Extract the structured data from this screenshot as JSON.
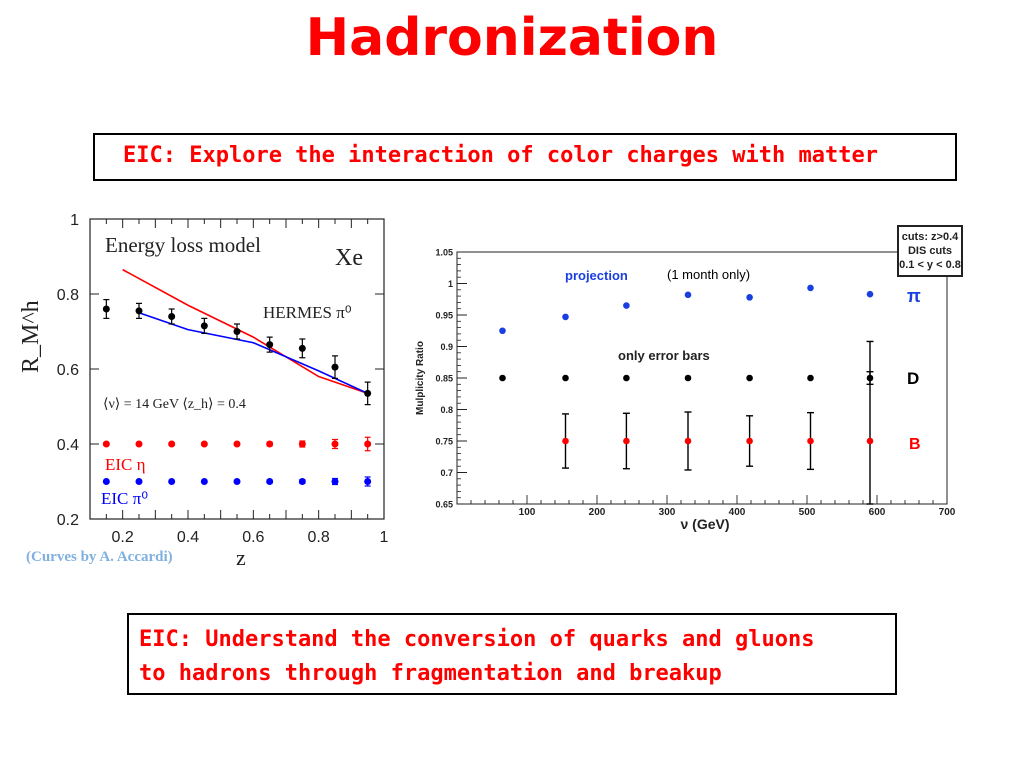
{
  "slide": {
    "title": "Hadronization",
    "box_top": "EIC: Explore the interaction of color charges with matter",
    "box_bottom_line1": "EIC: Understand the conversion of quarks and gluons",
    "box_bottom_line2": "to hadrons through fragmentation and breakup"
  },
  "chart_data": [
    {
      "type": "scatter",
      "title": "Energy loss model",
      "nucleus": "Xe",
      "xlabel": "z",
      "ylabel": "R_M^h",
      "xlim": [
        0.1,
        1.0
      ],
      "ylim": [
        0.2,
        1.0
      ],
      "x_ticks": [
        "0.2",
        "0.4",
        "0.6",
        "0.8",
        "1"
      ],
      "y_ticks": [
        "0.2",
        "0.4",
        "0.6",
        "0.8",
        "1"
      ],
      "kinematics_label": "⟨ν⟩ = 14 GeV   ⟨z_h⟩ = 0.4",
      "credit": "(Curves by A. Accardi)",
      "series": [
        {
          "name": "HERMES π⁰",
          "color": "#000000",
          "x": [
            0.15,
            0.25,
            0.35,
            0.45,
            0.55,
            0.65,
            0.75,
            0.85,
            0.95
          ],
          "y": [
            0.76,
            0.755,
            0.74,
            0.715,
            0.7,
            0.665,
            0.655,
            0.605,
            0.535
          ],
          "err": [
            0.025,
            0.02,
            0.02,
            0.02,
            0.02,
            0.02,
            0.025,
            0.03,
            0.03
          ]
        },
        {
          "name": "EIC η",
          "color": "#ff0000",
          "x": [
            0.15,
            0.25,
            0.35,
            0.45,
            0.55,
            0.65,
            0.75,
            0.85,
            0.95
          ],
          "y": [
            0.4,
            0.4,
            0.4,
            0.4,
            0.4,
            0.4,
            0.4,
            0.4,
            0.4
          ],
          "err": [
            0.003,
            0.003,
            0.003,
            0.003,
            0.004,
            0.005,
            0.008,
            0.012,
            0.018
          ]
        },
        {
          "name": "EIC π⁰",
          "color": "#0000ff",
          "x": [
            0.15,
            0.25,
            0.35,
            0.45,
            0.55,
            0.65,
            0.75,
            0.85,
            0.95
          ],
          "y": [
            0.3,
            0.3,
            0.3,
            0.3,
            0.3,
            0.3,
            0.3,
            0.3,
            0.3
          ],
          "err": [
            0.002,
            0.002,
            0.002,
            0.002,
            0.003,
            0.004,
            0.005,
            0.008,
            0.012
          ]
        }
      ],
      "curves": [
        {
          "color": "#ff0000",
          "x": [
            0.2,
            0.4,
            0.6,
            0.8,
            0.95
          ],
          "y": [
            0.865,
            0.77,
            0.685,
            0.58,
            0.535
          ]
        },
        {
          "color": "#0000ff",
          "x": [
            0.25,
            0.4,
            0.6,
            0.8,
            0.95
          ],
          "y": [
            0.75,
            0.705,
            0.67,
            0.595,
            0.535
          ]
        }
      ]
    },
    {
      "type": "scatter",
      "xlabel": "ν (GeV)",
      "ylabel": "Mulplicity Ratio",
      "xlim": [
        0,
        700
      ],
      "ylim": [
        0.65,
        1.05
      ],
      "x_ticks": [
        "100",
        "200",
        "300",
        "400",
        "500",
        "600",
        "700"
      ],
      "y_ticks": [
        "0.65",
        "0.7",
        "0.75",
        "0.8",
        "0.85",
        "0.9",
        "0.95",
        "1",
        "1.05"
      ],
      "cuts_box": [
        "cuts: z>0.4",
        "DIS cuts",
        "0.1 < y < 0.8"
      ],
      "projection_label": "projection",
      "projection_note": "(1 month only)",
      "error_note": "only error bars",
      "series": [
        {
          "name": "π",
          "color": "#1a3fe0",
          "x": [
            65,
            155,
            242,
            330,
            418,
            505,
            590
          ],
          "y": [
            0.925,
            0.947,
            0.965,
            0.982,
            0.978,
            0.993,
            0.983
          ]
        },
        {
          "name": "D",
          "color": "#000000",
          "x": [
            65,
            155,
            242,
            330,
            418,
            505,
            590
          ],
          "y": [
            0.85,
            0.85,
            0.85,
            0.85,
            0.85,
            0.85,
            0.85
          ],
          "err": [
            0,
            0,
            0,
            0,
            0,
            0,
            0.01
          ]
        },
        {
          "name": "B",
          "color": "#ff0000",
          "x": [
            155,
            242,
            330,
            418,
            505,
            590
          ],
          "y": [
            0.75,
            0.75,
            0.75,
            0.75,
            0.75,
            0.75
          ],
          "err": [
            0.043,
            0.044,
            0.046,
            0.04,
            0.045,
            0.158
          ]
        }
      ]
    }
  ]
}
